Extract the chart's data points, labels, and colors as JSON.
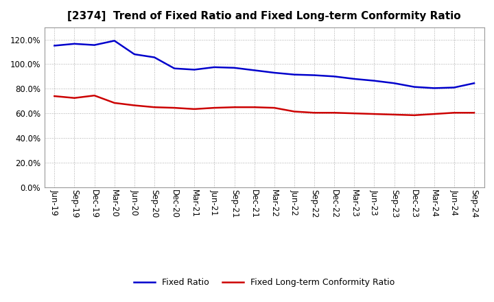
{
  "title": "[2374]  Trend of Fixed Ratio and Fixed Long-term Conformity Ratio",
  "x_labels": [
    "Jun-19",
    "Sep-19",
    "Dec-19",
    "Mar-20",
    "Jun-20",
    "Sep-20",
    "Dec-20",
    "Mar-21",
    "Jun-21",
    "Sep-21",
    "Dec-21",
    "Mar-22",
    "Jun-22",
    "Sep-22",
    "Dec-22",
    "Mar-23",
    "Jun-23",
    "Sep-23",
    "Dec-23",
    "Mar-24",
    "Jun-24",
    "Sep-24"
  ],
  "fixed_ratio": [
    115.0,
    116.5,
    115.5,
    119.0,
    108.0,
    105.5,
    96.5,
    95.5,
    97.5,
    97.0,
    95.0,
    93.0,
    91.5,
    91.0,
    90.0,
    88.0,
    86.5,
    84.5,
    81.5,
    80.5,
    81.0,
    84.5
  ],
  "fixed_lt_ratio": [
    74.0,
    72.5,
    74.5,
    68.5,
    66.5,
    65.0,
    64.5,
    63.5,
    64.5,
    65.0,
    65.0,
    64.5,
    61.5,
    60.5,
    60.5,
    60.0,
    59.5,
    59.0,
    58.5,
    59.5,
    60.5,
    60.5
  ],
  "fixed_ratio_color": "#0000cc",
  "fixed_lt_ratio_color": "#cc0000",
  "ylim": [
    0,
    130
  ],
  "yticks": [
    0,
    20,
    40,
    60,
    80,
    100,
    120
  ],
  "grid_color": "#aaaaaa",
  "background_color": "#ffffff",
  "legend_fixed": "Fixed Ratio",
  "legend_fixed_lt": "Fixed Long-term Conformity Ratio",
  "title_fontsize": 11,
  "tick_fontsize": 8.5,
  "legend_fontsize": 9
}
